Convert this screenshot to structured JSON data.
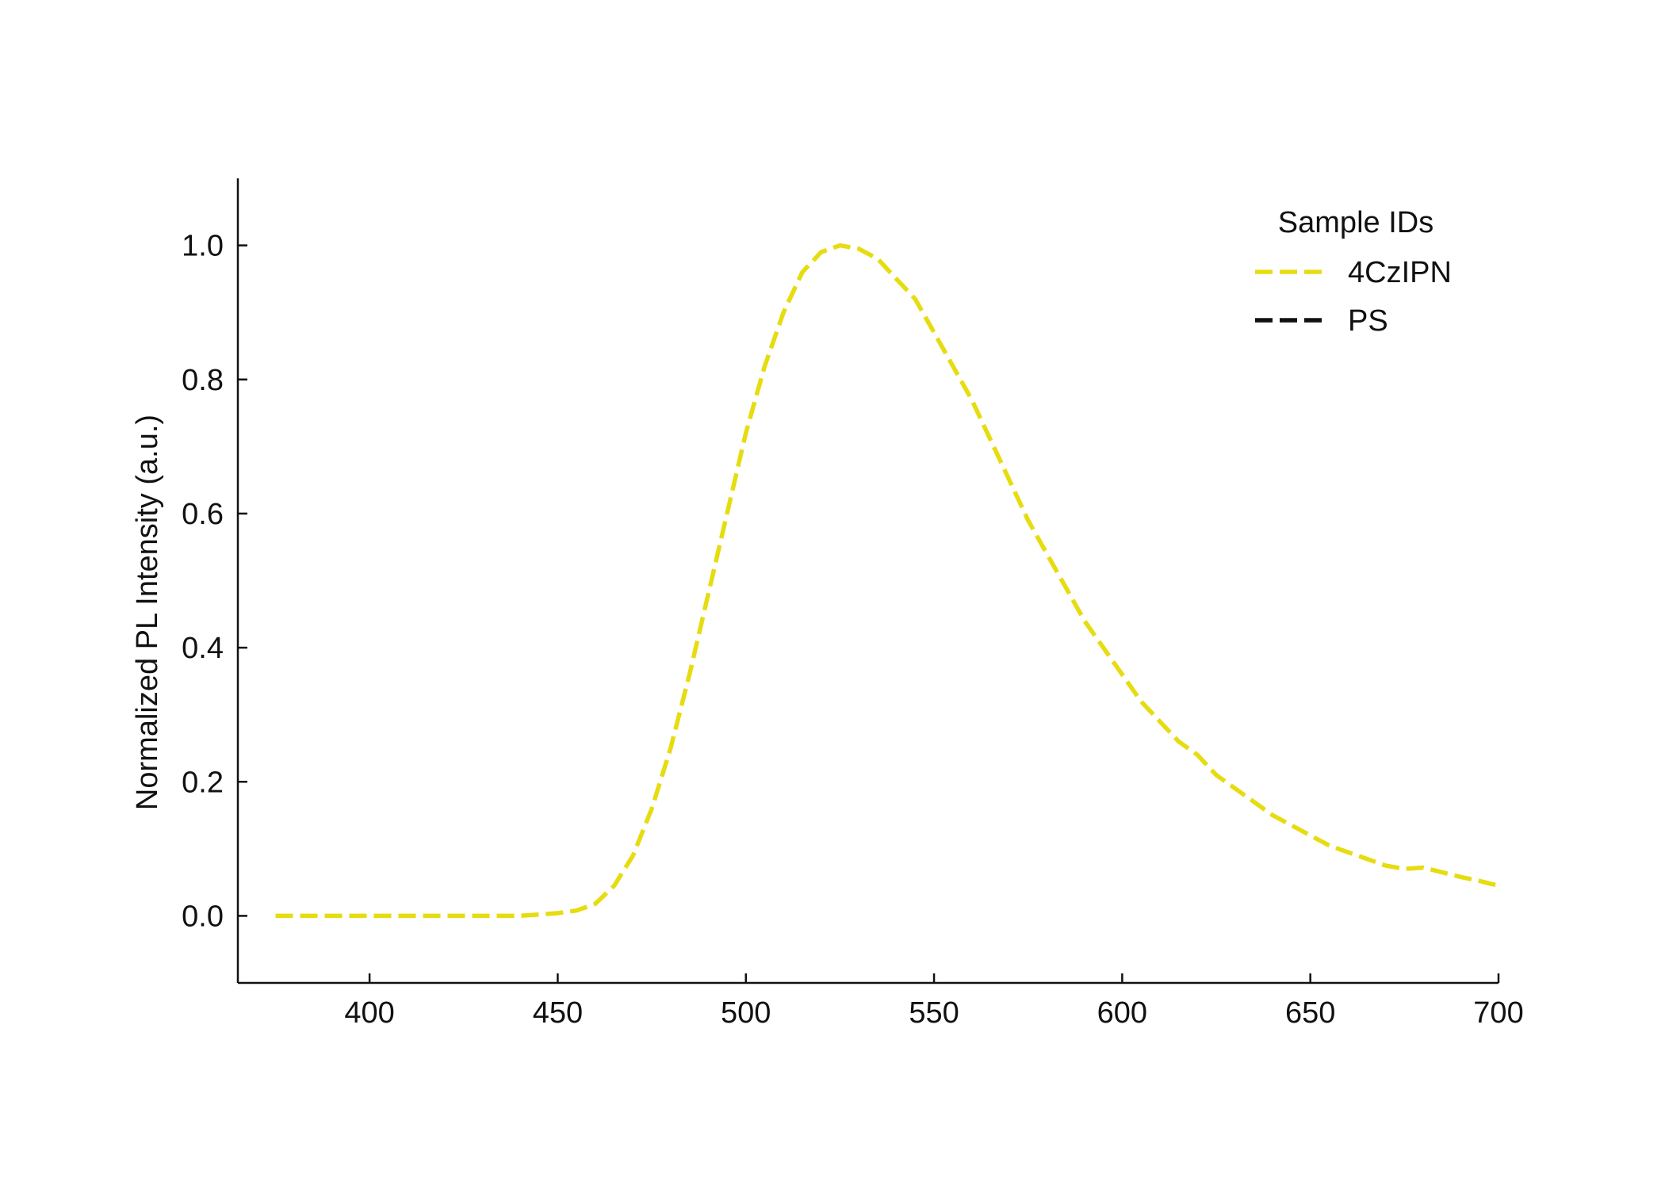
{
  "chart_data": {
    "type": "line",
    "title": "",
    "xlabel": "",
    "ylabel": "Normalized PL Intensity (a.u.)",
    "xlim": [
      365,
      700
    ],
    "ylim": [
      -0.1,
      1.1
    ],
    "xticks": [
      400,
      450,
      500,
      550,
      600,
      650,
      700
    ],
    "yticks": [
      0.0,
      0.2,
      0.4,
      0.6,
      0.8,
      1.0
    ],
    "xtick_labels": [
      "400",
      "450",
      "500",
      "550",
      "600",
      "650",
      "700"
    ],
    "ytick_labels": [
      "0.0",
      "0.2",
      "0.4",
      "0.6",
      "0.8",
      "1.0"
    ],
    "grid": false,
    "legend": {
      "title": "Sample IDs",
      "placement": "top-right",
      "entries": [
        {
          "label": "4CzIPN",
          "color": "#e6dc10",
          "dash": "dashed"
        },
        {
          "label": "PS",
          "color": "#111111",
          "dash": "dashed"
        }
      ]
    },
    "series": [
      {
        "name": "4CzIPN",
        "color": "#e6dc10",
        "x": [
          375,
          390,
          400,
          410,
          420,
          430,
          440,
          445,
          450,
          455,
          460,
          465,
          470,
          475,
          480,
          485,
          490,
          495,
          500,
          505,
          510,
          515,
          520,
          525,
          530,
          535,
          540,
          545,
          550,
          555,
          560,
          565,
          570,
          575,
          580,
          585,
          590,
          595,
          600,
          605,
          610,
          615,
          620,
          625,
          630,
          635,
          640,
          645,
          650,
          655,
          660,
          665,
          670,
          675,
          680,
          685,
          690,
          695,
          700
        ],
        "y": [
          0.0,
          0.0,
          0.0,
          0.0,
          0.0,
          0.0,
          0.0,
          0.002,
          0.004,
          0.008,
          0.018,
          0.045,
          0.09,
          0.16,
          0.25,
          0.36,
          0.48,
          0.6,
          0.72,
          0.82,
          0.9,
          0.96,
          0.99,
          1.0,
          0.995,
          0.98,
          0.95,
          0.92,
          0.87,
          0.82,
          0.77,
          0.71,
          0.65,
          0.59,
          0.54,
          0.49,
          0.44,
          0.4,
          0.36,
          0.32,
          0.29,
          0.26,
          0.24,
          0.21,
          0.19,
          0.17,
          0.15,
          0.135,
          0.12,
          0.105,
          0.095,
          0.085,
          0.075,
          0.07,
          0.072,
          0.065,
          0.058,
          0.052,
          0.045
        ]
      },
      {
        "name": "PS",
        "color": "#111111",
        "x": [],
        "y": []
      }
    ]
  }
}
